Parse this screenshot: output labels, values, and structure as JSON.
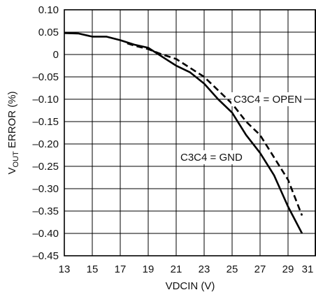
{
  "chart_data": {
    "type": "line",
    "xlabel": "VDCIN (V)",
    "ylabel_prefix": "V",
    "ylabel_sub": "OUT",
    "ylabel_suffix": " ERROR (%)",
    "xlim": [
      13,
      31
    ],
    "ylim": [
      -0.45,
      0.1
    ],
    "xticks": [
      13,
      15,
      17,
      19,
      21,
      23,
      25,
      27,
      29,
      31
    ],
    "yticks": [
      0.1,
      0.05,
      0,
      -0.05,
      -0.1,
      -0.15,
      -0.2,
      -0.25,
      -0.3,
      -0.35,
      -0.4,
      -0.45
    ],
    "ytick_labels": [
      "0.10",
      "0.05",
      "0",
      "–0.05",
      "–0.10",
      "–0.15",
      "–0.20",
      "–0.25",
      "–0.30",
      "–0.35",
      "–0.40",
      "–0.45"
    ],
    "grid": true,
    "series": [
      {
        "name": "C3C4 = GND",
        "style": "solid",
        "color": "#000000",
        "x": [
          13,
          14,
          15,
          16,
          17,
          18,
          19,
          20,
          21,
          22,
          23,
          24,
          25,
          26,
          27,
          28,
          29,
          30
        ],
        "y": [
          0.048,
          0.047,
          0.04,
          0.04,
          0.032,
          0.022,
          0.015,
          -0.005,
          -0.025,
          -0.04,
          -0.065,
          -0.1,
          -0.13,
          -0.18,
          -0.22,
          -0.27,
          -0.34,
          -0.4
        ]
      },
      {
        "name": "C3C4 = OPEN",
        "style": "dashed",
        "color": "#000000",
        "x": [
          17.5,
          18,
          19,
          20,
          21,
          22,
          23,
          24,
          25,
          26,
          27,
          28,
          29,
          30
        ],
        "y": [
          0.025,
          0.02,
          0.012,
          0.0,
          -0.01,
          -0.03,
          -0.05,
          -0.08,
          -0.11,
          -0.15,
          -0.18,
          -0.23,
          -0.28,
          -0.36
        ]
      }
    ],
    "annotations": [
      {
        "text": "C3C4 = OPEN",
        "series": 1
      },
      {
        "text": "C3C4 = GND",
        "series": 0
      }
    ]
  }
}
